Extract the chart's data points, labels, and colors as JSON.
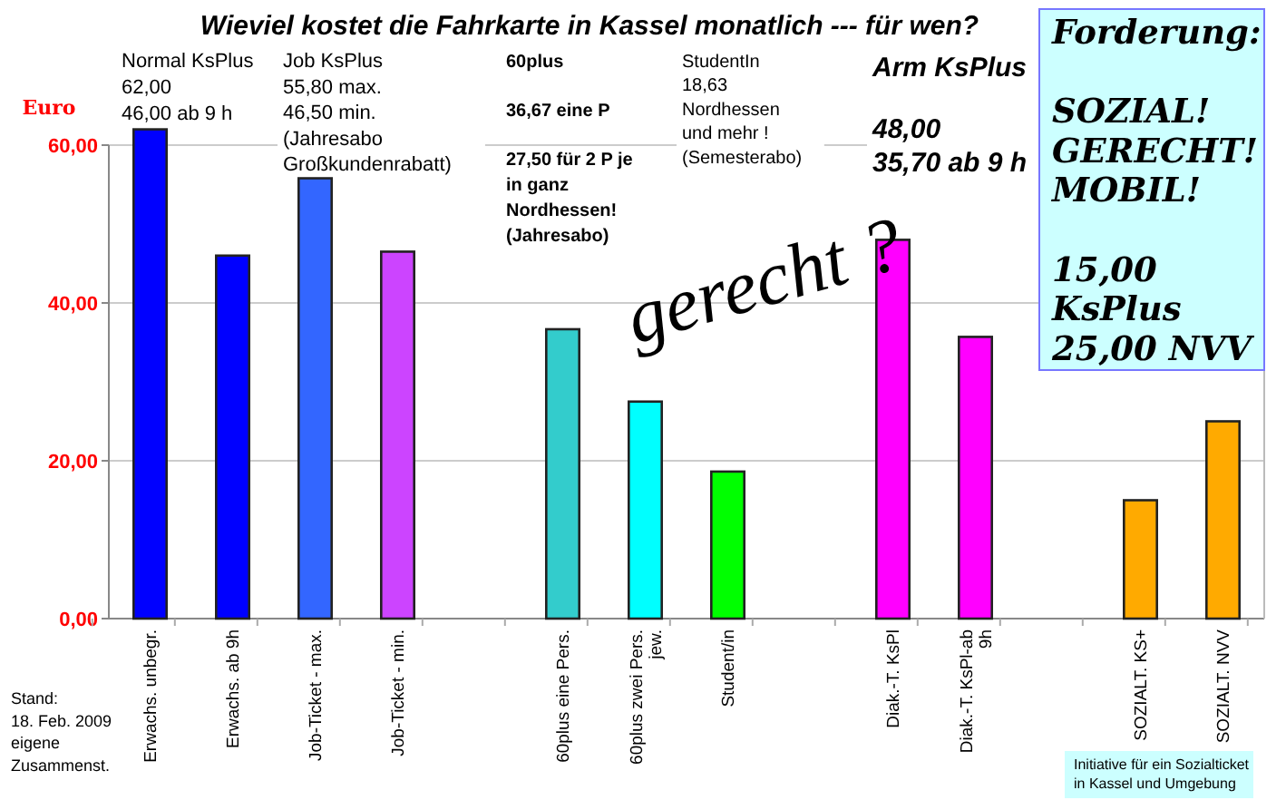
{
  "chart_data": {
    "type": "bar",
    "title": "Wieviel kostet die Fahrkarte in Kassel monatlich --- für wen?",
    "ylabel": "Euro",
    "categories": [
      "Erwachs. unbegr.",
      "Erwachs. ab 9h",
      "Job-Ticket - max.",
      "Job-Ticket - min.",
      null,
      "60plus eine Pers.",
      "60plus zwei Pers. jew.",
      "Student/in",
      null,
      "Diak.-T. KsPl",
      "Diak.-T. KsPl-ab 9h",
      null,
      "SOZIALT. KS+",
      "SOZIALT. NVV"
    ],
    "values": [
      62,
      46,
      55.8,
      46.5,
      null,
      36.67,
      27.5,
      18.63,
      null,
      48,
      35.7,
      null,
      15,
      25
    ],
    "colors": [
      "#0000ff",
      "#0000ff",
      "#3366ff",
      "#cc44ff",
      null,
      "#33cccc",
      "#00ffff",
      "#00ff00",
      null,
      "#ff00ff",
      "#ff00ff",
      null,
      "#ffaa00",
      "#ffaa00"
    ],
    "ylim": [
      0,
      62
    ],
    "yticks": [
      {
        "value": 0,
        "label": "0,00"
      },
      {
        "value": 20,
        "label": "20,00"
      },
      {
        "value": 40,
        "label": "40,00"
      },
      {
        "value": 60,
        "label": "60,00"
      }
    ],
    "grid": "y",
    "annotations": [
      "Normal KsPlus\n62,00\n46,00 ab 9 h",
      "Job KsPlus\n55,80 max.\n46,50 min.\n(Jahresabo\nGroßkundenrabatt)",
      "60plus",
      "36,67   eine P",
      "27,50   für 2 P je\nin ganz\nNordhessen!\n(Jahresabo)",
      "StudentIn\n18,63\nNordhessen\nund mehr !\n(Semesterabo)",
      "Arm KsPlus",
      "48,00\n35,70 ab 9 h",
      "gerecht ?",
      "Forderung:\n\nSOZIAL!\nGERECHT!\nMOBIL!\n\n15,00\nKsPlus\n25,00 NVV",
      "Stand:\n18. Feb. 2009\neigene\nZusammenst.",
      "Initiative für ein Sozialticket\nin Kassel und Umgebung"
    ]
  }
}
